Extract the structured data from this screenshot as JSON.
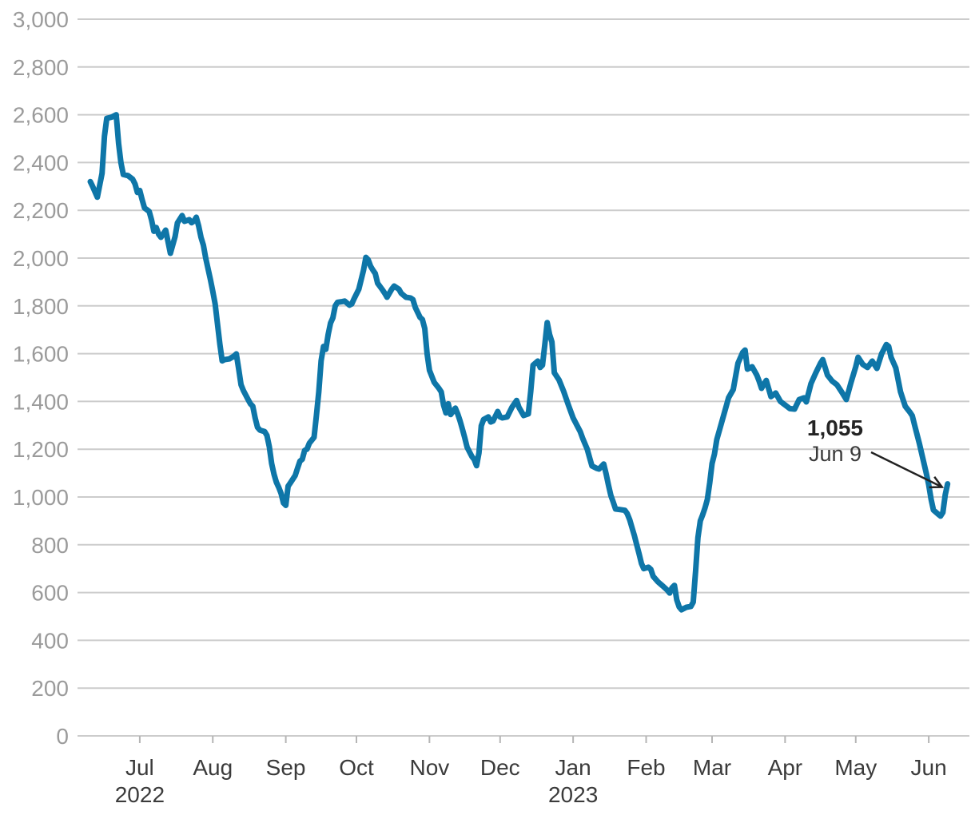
{
  "colors": {
    "line": "#0e76a8",
    "gridline": "#cccccc",
    "y_label": "#9b9b9b",
    "x_label": "#3b3b3b",
    "tick": "#b5b5b5",
    "annotation_value": "#242424",
    "annotation_date": "#3b3b3b",
    "arrow": "#222222",
    "background": "#ffffff"
  },
  "chart_data": {
    "type": "line",
    "title": "",
    "grid": "horizontal",
    "start_date": "2022-06-10",
    "ylim": [
      0,
      3000
    ],
    "y_ticks": {
      "values": [
        0,
        200,
        400,
        600,
        800,
        1000,
        1200,
        1400,
        1600,
        1800,
        2000,
        2200,
        2400,
        2600,
        2800,
        3000
      ],
      "labels": [
        "0",
        "200",
        "400",
        "600",
        "800",
        "1,000",
        "1,200",
        "1,400",
        "1,600",
        "1,800",
        "2,000",
        "2,200",
        "2,400",
        "2,600",
        "2,800",
        "3,000"
      ]
    },
    "x_axis": {
      "months": [
        {
          "label": "Jul",
          "date": "2022-07-01",
          "year_label": "2022"
        },
        {
          "label": "Aug",
          "date": "2022-08-01"
        },
        {
          "label": "Sep",
          "date": "2022-09-01"
        },
        {
          "label": "Oct",
          "date": "2022-10-01"
        },
        {
          "label": "Nov",
          "date": "2022-11-01"
        },
        {
          "label": "Dec",
          "date": "2022-12-01"
        },
        {
          "label": "Jan",
          "date": "2023-01-01",
          "year_label": "2023"
        },
        {
          "label": "Feb",
          "date": "2023-02-01"
        },
        {
          "label": "Mar",
          "date": "2023-03-01"
        },
        {
          "label": "Apr",
          "date": "2023-04-01"
        },
        {
          "label": "May",
          "date": "2023-05-01"
        },
        {
          "label": "Jun",
          "date": "2023-06-01"
        }
      ]
    },
    "annotation": {
      "value_label": "1,055",
      "date_label": "Jun 9",
      "point_date": "2023-06-09",
      "point_value": 1055
    },
    "points": [
      [
        "2022-06-10",
        2320
      ],
      [
        "2022-06-11",
        2300
      ],
      [
        "2022-06-13",
        2255
      ],
      [
        "2022-06-15",
        2355
      ],
      [
        "2022-06-16",
        2510
      ],
      [
        "2022-06-17",
        2585
      ],
      [
        "2022-06-19",
        2590
      ],
      [
        "2022-06-21",
        2600
      ],
      [
        "2022-06-22",
        2480
      ],
      [
        "2022-06-23",
        2400
      ],
      [
        "2022-06-24",
        2350
      ],
      [
        "2022-06-26",
        2345
      ],
      [
        "2022-06-28",
        2330
      ],
      [
        "2022-06-29",
        2310
      ],
      [
        "2022-06-30",
        2275
      ],
      [
        "2022-07-01",
        2283
      ],
      [
        "2022-07-02",
        2245
      ],
      [
        "2022-07-03",
        2210
      ],
      [
        "2022-07-05",
        2195
      ],
      [
        "2022-07-06",
        2160
      ],
      [
        "2022-07-07",
        2112
      ],
      [
        "2022-07-08",
        2128
      ],
      [
        "2022-07-09",
        2100
      ],
      [
        "2022-07-10",
        2087
      ],
      [
        "2022-07-12",
        2117
      ],
      [
        "2022-07-13",
        2068
      ],
      [
        "2022-07-14",
        2020
      ],
      [
        "2022-07-16",
        2090
      ],
      [
        "2022-07-17",
        2147
      ],
      [
        "2022-07-19",
        2178
      ],
      [
        "2022-07-20",
        2154
      ],
      [
        "2022-07-22",
        2161
      ],
      [
        "2022-07-23",
        2148
      ],
      [
        "2022-07-24",
        2155
      ],
      [
        "2022-07-25",
        2171
      ],
      [
        "2022-07-26",
        2134
      ],
      [
        "2022-07-27",
        2087
      ],
      [
        "2022-07-28",
        2054
      ],
      [
        "2022-07-29",
        2000
      ],
      [
        "2022-07-31",
        1910
      ],
      [
        "2022-08-01",
        1862
      ],
      [
        "2022-08-02",
        1808
      ],
      [
        "2022-08-04",
        1640
      ],
      [
        "2022-08-05",
        1570
      ],
      [
        "2022-08-06",
        1575
      ],
      [
        "2022-08-08",
        1578
      ],
      [
        "2022-08-10",
        1590
      ],
      [
        "2022-08-11",
        1599
      ],
      [
        "2022-08-12",
        1535
      ],
      [
        "2022-08-13",
        1470
      ],
      [
        "2022-08-14",
        1445
      ],
      [
        "2022-08-16",
        1408
      ],
      [
        "2022-08-17",
        1390
      ],
      [
        "2022-08-18",
        1380
      ],
      [
        "2022-08-19",
        1330
      ],
      [
        "2022-08-20",
        1292
      ],
      [
        "2022-08-21",
        1280
      ],
      [
        "2022-08-23",
        1274
      ],
      [
        "2022-08-24",
        1258
      ],
      [
        "2022-08-25",
        1210
      ],
      [
        "2022-08-26",
        1140
      ],
      [
        "2022-08-27",
        1095
      ],
      [
        "2022-08-28",
        1062
      ],
      [
        "2022-08-29",
        1040
      ],
      [
        "2022-08-30",
        1015
      ],
      [
        "2022-08-31",
        975
      ],
      [
        "2022-09-01",
        965
      ],
      [
        "2022-09-02",
        1045
      ],
      [
        "2022-09-03",
        1060
      ],
      [
        "2022-09-05",
        1090
      ],
      [
        "2022-09-06",
        1120
      ],
      [
        "2022-09-07",
        1150
      ],
      [
        "2022-09-08",
        1158
      ],
      [
        "2022-09-09",
        1195
      ],
      [
        "2022-09-10",
        1200
      ],
      [
        "2022-09-11",
        1225
      ],
      [
        "2022-09-13",
        1250
      ],
      [
        "2022-09-14",
        1340
      ],
      [
        "2022-09-15",
        1440
      ],
      [
        "2022-09-16",
        1570
      ],
      [
        "2022-09-17",
        1630
      ],
      [
        "2022-09-18",
        1618
      ],
      [
        "2022-09-19",
        1680
      ],
      [
        "2022-09-20",
        1728
      ],
      [
        "2022-09-21",
        1750
      ],
      [
        "2022-09-22",
        1800
      ],
      [
        "2022-09-23",
        1815
      ],
      [
        "2022-09-25",
        1818
      ],
      [
        "2022-09-26",
        1820
      ],
      [
        "2022-09-28",
        1803
      ],
      [
        "2022-09-29",
        1808
      ],
      [
        "2022-09-30",
        1830
      ],
      [
        "2022-10-02",
        1870
      ],
      [
        "2022-10-04",
        1950
      ],
      [
        "2022-10-05",
        2003
      ],
      [
        "2022-10-06",
        1993
      ],
      [
        "2022-10-07",
        1966
      ],
      [
        "2022-10-08",
        1950
      ],
      [
        "2022-10-09",
        1935
      ],
      [
        "2022-10-10",
        1895
      ],
      [
        "2022-10-12",
        1868
      ],
      [
        "2022-10-13",
        1853
      ],
      [
        "2022-10-14",
        1836
      ],
      [
        "2022-10-16",
        1870
      ],
      [
        "2022-10-17",
        1883
      ],
      [
        "2022-10-19",
        1870
      ],
      [
        "2022-10-20",
        1853
      ],
      [
        "2022-10-22",
        1836
      ],
      [
        "2022-10-24",
        1833
      ],
      [
        "2022-10-25",
        1826
      ],
      [
        "2022-10-26",
        1793
      ],
      [
        "2022-10-28",
        1752
      ],
      [
        "2022-10-29",
        1743
      ],
      [
        "2022-10-30",
        1705
      ],
      [
        "2022-10-31",
        1600
      ],
      [
        "2022-11-01",
        1530
      ],
      [
        "2022-11-03",
        1480
      ],
      [
        "2022-11-05",
        1455
      ],
      [
        "2022-11-06",
        1440
      ],
      [
        "2022-11-07",
        1385
      ],
      [
        "2022-11-08",
        1352
      ],
      [
        "2022-11-09",
        1390
      ],
      [
        "2022-11-10",
        1345
      ],
      [
        "2022-11-12",
        1372
      ],
      [
        "2022-11-13",
        1348
      ],
      [
        "2022-11-14",
        1318
      ],
      [
        "2022-11-15",
        1284
      ],
      [
        "2022-11-16",
        1247
      ],
      [
        "2022-11-17",
        1208
      ],
      [
        "2022-11-19",
        1170
      ],
      [
        "2022-11-20",
        1157
      ],
      [
        "2022-11-21",
        1131
      ],
      [
        "2022-11-22",
        1184
      ],
      [
        "2022-11-23",
        1298
      ],
      [
        "2022-11-24",
        1324
      ],
      [
        "2022-11-26",
        1335
      ],
      [
        "2022-11-27",
        1314
      ],
      [
        "2022-11-28",
        1318
      ],
      [
        "2022-11-30",
        1358
      ],
      [
        "2022-12-01",
        1335
      ],
      [
        "2022-12-02",
        1331
      ],
      [
        "2022-12-04",
        1335
      ],
      [
        "2022-12-06",
        1375
      ],
      [
        "2022-12-08",
        1404
      ],
      [
        "2022-12-09",
        1375
      ],
      [
        "2022-12-11",
        1341
      ],
      [
        "2022-12-13",
        1348
      ],
      [
        "2022-12-14",
        1442
      ],
      [
        "2022-12-15",
        1552
      ],
      [
        "2022-12-17",
        1569
      ],
      [
        "2022-12-18",
        1542
      ],
      [
        "2022-12-19",
        1552
      ],
      [
        "2022-12-20",
        1640
      ],
      [
        "2022-12-21",
        1730
      ],
      [
        "2022-12-22",
        1680
      ],
      [
        "2022-12-23",
        1649
      ],
      [
        "2022-12-24",
        1520
      ],
      [
        "2022-12-26",
        1490
      ],
      [
        "2022-12-28",
        1442
      ],
      [
        "2022-12-30",
        1385
      ],
      [
        "2023-01-01",
        1331
      ],
      [
        "2023-01-04",
        1274
      ],
      [
        "2023-01-05",
        1247
      ],
      [
        "2023-01-07",
        1200
      ],
      [
        "2023-01-08",
        1164
      ],
      [
        "2023-01-09",
        1130
      ],
      [
        "2023-01-11",
        1120
      ],
      [
        "2023-01-12",
        1117
      ],
      [
        "2023-01-14",
        1138
      ],
      [
        "2023-01-15",
        1097
      ],
      [
        "2023-01-16",
        1051
      ],
      [
        "2023-01-17",
        1007
      ],
      [
        "2023-01-18",
        980
      ],
      [
        "2023-01-19",
        950
      ],
      [
        "2023-01-21",
        947
      ],
      [
        "2023-01-23",
        944
      ],
      [
        "2023-01-24",
        930
      ],
      [
        "2023-01-25",
        905
      ],
      [
        "2023-01-26",
        872
      ],
      [
        "2023-01-27",
        838
      ],
      [
        "2023-01-28",
        800
      ],
      [
        "2023-01-29",
        762
      ],
      [
        "2023-01-30",
        722
      ],
      [
        "2023-01-31",
        700
      ],
      [
        "2023-02-02",
        706
      ],
      [
        "2023-02-03",
        697
      ],
      [
        "2023-02-04",
        668
      ],
      [
        "2023-02-06",
        645
      ],
      [
        "2023-02-08",
        628
      ],
      [
        "2023-02-10",
        610
      ],
      [
        "2023-02-11",
        598
      ],
      [
        "2023-02-12",
        620
      ],
      [
        "2023-02-13",
        630
      ],
      [
        "2023-02-14",
        570
      ],
      [
        "2023-02-15",
        540
      ],
      [
        "2023-02-16",
        528
      ],
      [
        "2023-02-18",
        538
      ],
      [
        "2023-02-20",
        542
      ],
      [
        "2023-02-21",
        560
      ],
      [
        "2023-02-22",
        690
      ],
      [
        "2023-02-23",
        830
      ],
      [
        "2023-02-24",
        900
      ],
      [
        "2023-02-25",
        925
      ],
      [
        "2023-02-26",
        955
      ],
      [
        "2023-02-27",
        990
      ],
      [
        "2023-02-28",
        1060
      ],
      [
        "2023-03-01",
        1140
      ],
      [
        "2023-03-02",
        1180
      ],
      [
        "2023-03-03",
        1240
      ],
      [
        "2023-03-05",
        1310
      ],
      [
        "2023-03-07",
        1380
      ],
      [
        "2023-03-08",
        1415
      ],
      [
        "2023-03-10",
        1450
      ],
      [
        "2023-03-12",
        1560
      ],
      [
        "2023-03-14",
        1605
      ],
      [
        "2023-03-15",
        1615
      ],
      [
        "2023-03-16",
        1535
      ],
      [
        "2023-03-18",
        1545
      ],
      [
        "2023-03-20",
        1510
      ],
      [
        "2023-03-21",
        1485
      ],
      [
        "2023-03-22",
        1455
      ],
      [
        "2023-03-24",
        1488
      ],
      [
        "2023-03-26",
        1420
      ],
      [
        "2023-03-28",
        1435
      ],
      [
        "2023-03-30",
        1400
      ],
      [
        "2023-04-01",
        1385
      ],
      [
        "2023-04-03",
        1370
      ],
      [
        "2023-04-05",
        1368
      ],
      [
        "2023-04-07",
        1408
      ],
      [
        "2023-04-09",
        1415
      ],
      [
        "2023-04-10",
        1398
      ],
      [
        "2023-04-12",
        1475
      ],
      [
        "2023-04-14",
        1519
      ],
      [
        "2023-04-16",
        1560
      ],
      [
        "2023-04-17",
        1575
      ],
      [
        "2023-04-19",
        1510
      ],
      [
        "2023-04-21",
        1485
      ],
      [
        "2023-04-23",
        1470
      ],
      [
        "2023-04-25",
        1440
      ],
      [
        "2023-04-27",
        1408
      ],
      [
        "2023-04-29",
        1480
      ],
      [
        "2023-05-01",
        1545
      ],
      [
        "2023-05-02",
        1585
      ],
      [
        "2023-05-04",
        1555
      ],
      [
        "2023-05-06",
        1542
      ],
      [
        "2023-05-08",
        1569
      ],
      [
        "2023-05-10",
        1538
      ],
      [
        "2023-05-12",
        1600
      ],
      [
        "2023-05-14",
        1638
      ],
      [
        "2023-05-15",
        1630
      ],
      [
        "2023-05-16",
        1585
      ],
      [
        "2023-05-18",
        1540
      ],
      [
        "2023-05-20",
        1440
      ],
      [
        "2023-05-22",
        1380
      ],
      [
        "2023-05-24",
        1355
      ],
      [
        "2023-05-25",
        1340
      ],
      [
        "2023-05-26",
        1300
      ],
      [
        "2023-05-28",
        1225
      ],
      [
        "2023-05-30",
        1140
      ],
      [
        "2023-05-31",
        1097
      ],
      [
        "2023-06-01",
        1051
      ],
      [
        "2023-06-02",
        990
      ],
      [
        "2023-06-03",
        945
      ],
      [
        "2023-06-05",
        928
      ],
      [
        "2023-06-06",
        920
      ],
      [
        "2023-06-07",
        935
      ],
      [
        "2023-06-08",
        1010
      ],
      [
        "2023-06-09",
        1055
      ]
    ]
  }
}
